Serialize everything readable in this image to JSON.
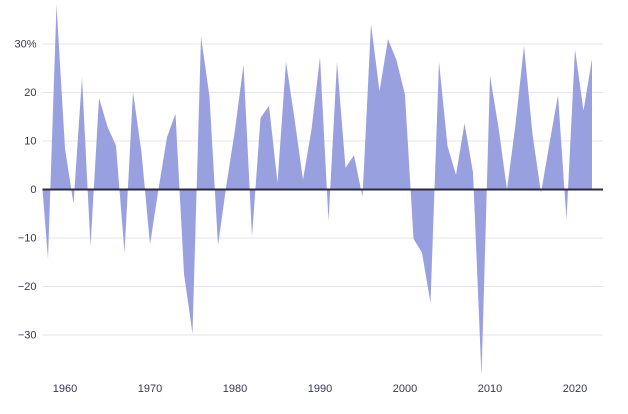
{
  "chart_data": {
    "type": "area",
    "title": "",
    "xlabel": "",
    "ylabel": "",
    "unit": "%",
    "grid": true,
    "legend": "none",
    "ylim": [
      -40,
      40
    ],
    "x": [
      1957,
      1958,
      1959,
      1960,
      1961,
      1962,
      1963,
      1964,
      1965,
      1966,
      1967,
      1968,
      1969,
      1970,
      1971,
      1972,
      1973,
      1974,
      1975,
      1976,
      1977,
      1978,
      1979,
      1980,
      1981,
      1982,
      1983,
      1984,
      1985,
      1986,
      1987,
      1988,
      1989,
      1990,
      1991,
      1992,
      1993,
      1994,
      1995,
      1996,
      1997,
      1998,
      1999,
      2000,
      2001,
      2002,
      2003,
      2004,
      2005,
      2006,
      2007,
      2008,
      2009,
      2010,
      2011,
      2012,
      2013,
      2014,
      2015,
      2016,
      2017,
      2018,
      2019,
      2020,
      2021
    ],
    "values": [
      -14.31,
      38.06,
      8.48,
      -2.97,
      23.13,
      -11.81,
      18.89,
      12.97,
      9.06,
      -13.09,
      20.09,
      7.66,
      -11.36,
      0.1,
      10.79,
      15.63,
      -17.37,
      -29.72,
      31.55,
      19.15,
      -11.5,
      1.06,
      12.31,
      25.77,
      -9.73,
      14.76,
      17.27,
      1.4,
      26.33,
      14.62,
      2.03,
      12.4,
      27.25,
      -6.56,
      26.31,
      4.46,
      7.06,
      -1.54,
      34.11,
      20.26,
      31.01,
      26.67,
      19.53,
      -10.14,
      -13.04,
      -23.37,
      26.38,
      8.99,
      3.0,
      13.62,
      3.53,
      -38.49,
      23.45,
      12.78,
      0.0,
      13.41,
      29.6,
      11.39,
      -0.73,
      9.54,
      19.42,
      -6.24,
      28.88,
      16.26,
      26.89
    ],
    "y_ticks": [
      {
        "value": 30,
        "label": "30%"
      },
      {
        "value": 20,
        "label": "20"
      },
      {
        "value": 10,
        "label": "10"
      },
      {
        "value": 0,
        "label": "0"
      },
      {
        "value": -10,
        "label": "−10"
      },
      {
        "value": -20,
        "label": "−20"
      },
      {
        "value": -30,
        "label": "−30"
      }
    ],
    "x_ticks": [
      {
        "value": 1960,
        "label": "1960"
      },
      {
        "value": 1970,
        "label": "1970"
      },
      {
        "value": 1980,
        "label": "1980"
      },
      {
        "value": 1990,
        "label": "1990"
      },
      {
        "value": 2000,
        "label": "2000"
      },
      {
        "value": 2010,
        "label": "2010"
      },
      {
        "value": 2020,
        "label": "2020"
      }
    ],
    "colors": {
      "fill": "#99a0e0",
      "zero_line": "#2a2b3c",
      "gridline": "#e4e4ea",
      "tick_text": "#35375a",
      "background": "#ffffff"
    }
  }
}
